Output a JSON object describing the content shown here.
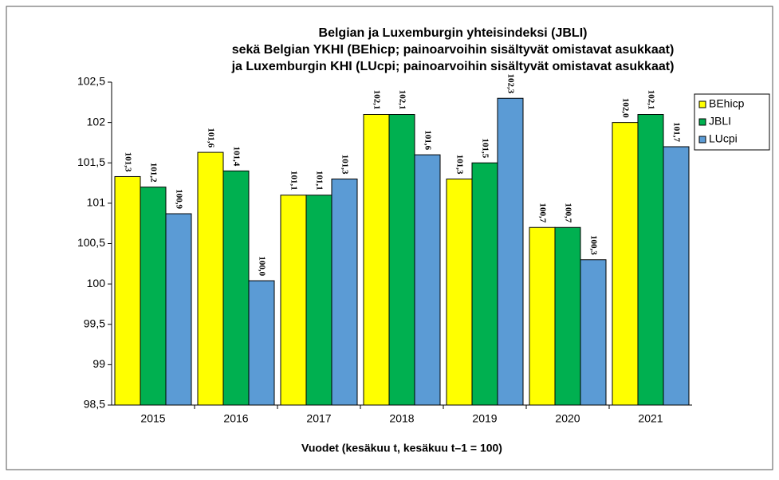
{
  "chart_data": {
    "type": "bar",
    "title": [
      "Belgian ja Luxemburgin yhteisindeksi (JBLI)",
      "sekä Belgian YKHI (BEhicp; painoarvoihin sisältyvät omistavat asukkaat)",
      "ja Luxemburgin KHI (LUcpi; painoarvoihin sisältyvät omistavat asukkaat)"
    ],
    "x_label": "Vuodet (kesäkuu t, kesäkuu t–1 = 100)",
    "categories": [
      "2015",
      "2016",
      "2017",
      "2018",
      "2019",
      "2020",
      "2021"
    ],
    "series": [
      {
        "name": "BEhicp",
        "color": "#ffff00",
        "values": [
          101.33,
          101.63,
          101.1,
          102.1,
          101.3,
          100.7,
          102.0
        ],
        "value_labels": [
          "101,3",
          "101,6",
          "101,1",
          "102,1",
          "101,3",
          "100,7",
          "102,0"
        ]
      },
      {
        "name": "JBLI",
        "color": "#00b050",
        "values": [
          101.2,
          101.4,
          101.1,
          102.1,
          101.5,
          100.7,
          102.1
        ],
        "value_labels": [
          "101,2",
          "101,4",
          "101,1",
          "102,1",
          "101,5",
          "100,7",
          "102,1"
        ]
      },
      {
        "name": "LUcpi",
        "color": "#5b9bd5",
        "values": [
          100.87,
          100.04,
          101.3,
          101.6,
          102.3,
          100.3,
          101.7
        ],
        "value_labels": [
          "100,9",
          "100,0",
          "101,3",
          "101,6",
          "102,3",
          "100,3",
          "101,7"
        ]
      }
    ],
    "ylim": [
      98.5,
      102.5
    ],
    "yticks": [
      {
        "value": 98.5,
        "label": "98,5"
      },
      99,
      {
        "value": 99.5,
        "label": "99,5"
      },
      100,
      {
        "value": 100.5,
        "label": "100,5"
      },
      101,
      {
        "value": 101.5,
        "label": "101,5"
      },
      102,
      {
        "value": 102.5,
        "label": "102,5"
      }
    ],
    "grid": false,
    "legend": "right"
  }
}
